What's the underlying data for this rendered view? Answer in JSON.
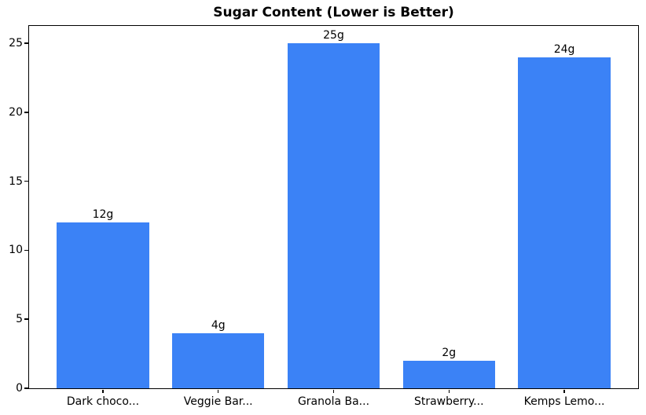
{
  "chart_data": {
    "type": "bar",
    "title": "Sugar Content (Lower is Better)",
    "categories": [
      "Dark choco...",
      "Veggie Bar...",
      "Granola Ba...",
      "Strawberry...",
      "Kemps Lemo..."
    ],
    "values": [
      12,
      4,
      25,
      2,
      24
    ],
    "bar_labels": [
      "12g",
      "4g",
      "25g",
      "2g",
      "24g"
    ],
    "yticks": [
      0,
      5,
      10,
      15,
      20,
      25
    ],
    "ylim": [
      0,
      26.25
    ],
    "xlim": [
      -0.64,
      4.64
    ],
    "bar_width": 0.8,
    "bar_color": "#3b82f6",
    "spine_color": "#000000",
    "text_color": "#000000",
    "background_color": "#ffffff",
    "xlabel": "",
    "ylabel": "",
    "grid": false,
    "legend": null
  }
}
